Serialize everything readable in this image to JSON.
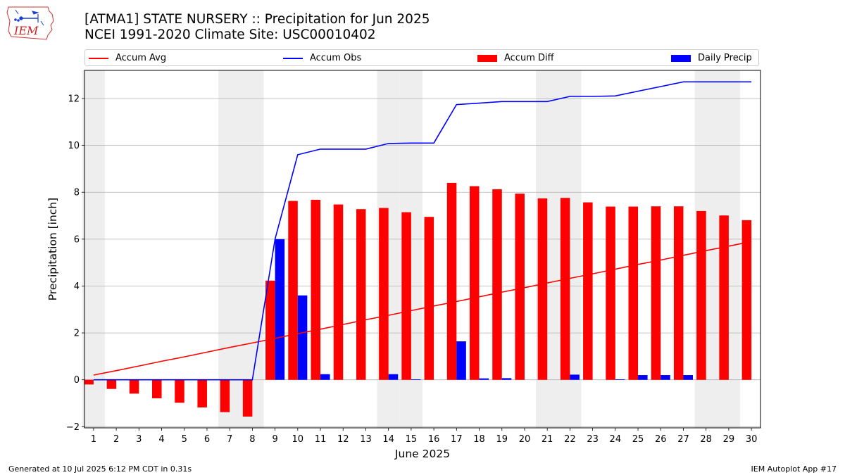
{
  "header": {
    "title_line1": "[ATMA1] STATE NURSERY :: Precipitation for Jun 2025",
    "title_line2": "NCEI 1991-2020 Climate Site: USC00010402",
    "logo_text": "IEM"
  },
  "footer": {
    "left": "Generated at 10 Jul 2025 6:12 PM CDT in 0.31s",
    "right": "IEM Autoplot App #17"
  },
  "colors": {
    "accum_avg": "#ff0000",
    "accum_obs": "#0000ff",
    "accum_diff": "#ff0000",
    "daily_precip": "#0000ff",
    "weekend_shade": "#eeeeee",
    "grid": "#b0b0b0"
  },
  "chart_data": {
    "type": "bar",
    "xlabel": "June 2025",
    "ylabel": "Precipitation [inch]",
    "ylim": [
      -2.05,
      13.2
    ],
    "yticks": [
      -2,
      0,
      2,
      4,
      6,
      8,
      10,
      12
    ],
    "grid": "horizontal",
    "legend_position": "top",
    "x": [
      1,
      2,
      3,
      4,
      5,
      6,
      7,
      8,
      9,
      10,
      11,
      12,
      13,
      14,
      15,
      16,
      17,
      18,
      19,
      20,
      21,
      22,
      23,
      24,
      25,
      26,
      27,
      28,
      29,
      30
    ],
    "weekend_shaded_days": [
      1,
      7,
      8,
      14,
      15,
      21,
      22,
      28,
      29
    ],
    "series": [
      {
        "name": "Accum Avg",
        "kind": "line",
        "values": [
          0.2,
          0.39,
          0.59,
          0.79,
          0.98,
          1.18,
          1.38,
          1.57,
          1.77,
          1.97,
          2.16,
          2.36,
          2.56,
          2.75,
          2.95,
          3.15,
          3.34,
          3.54,
          3.74,
          3.93,
          4.13,
          4.33,
          4.52,
          4.72,
          4.92,
          5.11,
          5.31,
          5.51,
          5.7,
          5.9
        ]
      },
      {
        "name": "Accum Obs",
        "kind": "line",
        "values": [
          0,
          0,
          0,
          0,
          0,
          0,
          0,
          0,
          6.0,
          9.6,
          9.84,
          9.84,
          9.84,
          10.08,
          10.1,
          10.1,
          11.74,
          11.8,
          11.87,
          11.87,
          11.87,
          12.09,
          12.09,
          12.11,
          12.31,
          12.51,
          12.71,
          12.71,
          12.71,
          12.71
        ]
      },
      {
        "name": "Accum Diff",
        "kind": "bar",
        "values": [
          -0.2,
          -0.39,
          -0.59,
          -0.79,
          -0.98,
          -1.18,
          -1.38,
          -1.57,
          4.23,
          7.63,
          7.68,
          7.48,
          7.28,
          7.33,
          7.15,
          6.95,
          8.4,
          8.26,
          8.13,
          7.94,
          7.74,
          7.76,
          7.57,
          7.39,
          7.39,
          7.4,
          7.4,
          7.2,
          7.01,
          6.81
        ]
      },
      {
        "name": "Daily Precip",
        "kind": "bar",
        "values": [
          0,
          0,
          0,
          0,
          0,
          0,
          0,
          0,
          6.0,
          3.6,
          0.24,
          0,
          0,
          0.24,
          0.02,
          0,
          1.64,
          0.06,
          0.07,
          0,
          0,
          0.22,
          0,
          0.02,
          0.2,
          0.2,
          0.2,
          0,
          0,
          0
        ]
      }
    ]
  }
}
